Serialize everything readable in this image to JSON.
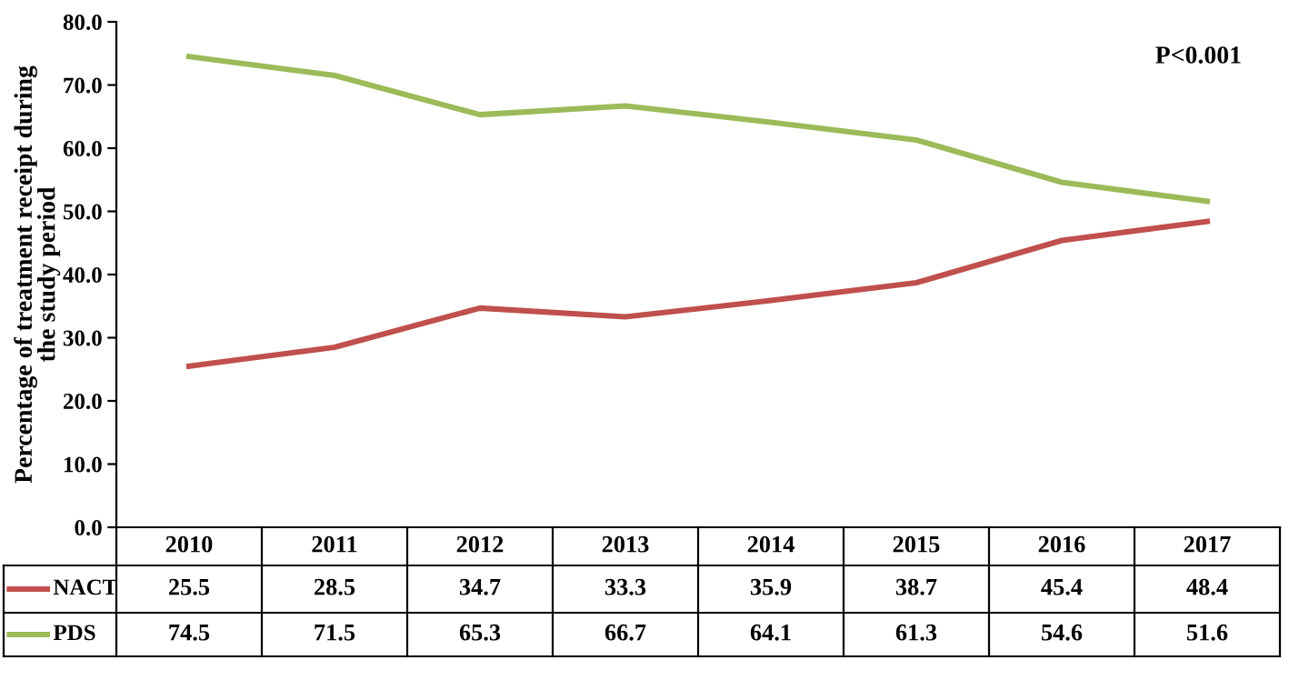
{
  "chart_data": {
    "type": "line",
    "ylabel": "Percentage of treatment receipt during\nthe study period",
    "categories": [
      "2010",
      "2011",
      "2012",
      "2013",
      "2014",
      "2015",
      "2016",
      "2017"
    ],
    "series": [
      {
        "name": "NACT",
        "color": "#c0504d",
        "values": [
          25.5,
          28.5,
          34.7,
          33.3,
          35.9,
          38.7,
          45.4,
          48.4
        ]
      },
      {
        "name": "PDS",
        "color": "#9bbb59",
        "values": [
          74.5,
          71.5,
          65.3,
          66.7,
          64.1,
          61.3,
          54.6,
          51.6
        ]
      }
    ],
    "ylim": [
      0,
      80
    ],
    "yticks": [
      {
        "value": 0,
        "label": "0.0"
      },
      {
        "value": 10,
        "label": "10.0"
      },
      {
        "value": 20,
        "label": "20.0"
      },
      {
        "value": 30,
        "label": "30.0"
      },
      {
        "value": 40,
        "label": "40.0"
      },
      {
        "value": 50,
        "label": "50.0"
      },
      {
        "value": 60,
        "label": "60.0"
      },
      {
        "value": 70,
        "label": "70.0"
      },
      {
        "value": 80,
        "label": "80.0"
      }
    ],
    "annotations": [
      "P<0.001"
    ],
    "data_labels": true,
    "legend": "bottom left",
    "grid": false,
    "marker": "none",
    "line_style": "solid"
  }
}
